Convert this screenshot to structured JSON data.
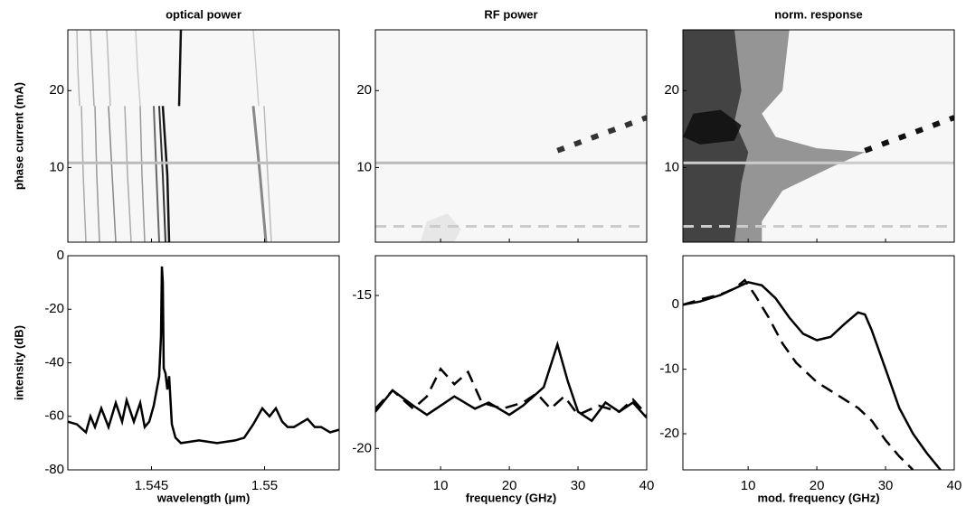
{
  "chart_data": [
    {
      "type": "heatmap",
      "title": "optical power",
      "ylabel": "phase current (mA)",
      "xlim": [
        1.5413,
        1.5533
      ],
      "ylim": [
        0.3,
        27.9
      ],
      "yticks": [
        10,
        20
      ],
      "background": "#f7f7f7",
      "traces": [
        {
          "x": [
            1.5419,
            1.54198,
            1.5421
          ],
          "y": [
            18,
            9,
            0.3
          ],
          "color": "#aaaaaa",
          "width": 1.5
        },
        {
          "x": [
            1.5425,
            1.54258,
            1.5427
          ],
          "y": [
            18,
            9,
            0.3
          ],
          "color": "#999999",
          "width": 1.5
        },
        {
          "x": [
            1.5431,
            1.54326,
            1.54342
          ],
          "y": [
            18,
            9,
            0.3
          ],
          "color": "#888888",
          "width": 1.5
        },
        {
          "x": [
            1.54382,
            1.54394,
            1.5441
          ],
          "y": [
            18,
            9,
            0.3
          ],
          "color": "#aaaaaa",
          "width": 1.5
        },
        {
          "x": [
            1.5445,
            1.54458,
            1.5447
          ],
          "y": [
            18,
            9,
            0.3
          ],
          "color": "#999999",
          "width": 1.5
        },
        {
          "x": [
            1.5451,
            1.54522,
            1.54534
          ],
          "y": [
            18,
            9,
            0.3
          ],
          "color": "#666666",
          "width": 2
        },
        {
          "x": [
            1.54534,
            1.5455,
            1.54562
          ],
          "y": [
            18,
            9,
            0.3
          ],
          "color": "#333333",
          "width": 2
        },
        {
          "x": [
            1.5455,
            1.5457,
            1.54578
          ],
          "y": [
            18,
            9,
            0.3
          ],
          "color": "#111111",
          "width": 2.5
        },
        {
          "x": [
            1.5495,
            1.5498,
            1.55006
          ],
          "y": [
            18,
            9,
            0.3
          ],
          "color": "#888888",
          "width": 3
        },
        {
          "x": [
            1.54998,
            1.55014,
            1.5503
          ],
          "y": [
            18,
            9,
            0.3
          ],
          "color": "#bbbbbb",
          "width": 1.5
        },
        {
          "x": [
            1.5463,
            1.54626,
            1.54622
          ],
          "y": [
            27.9,
            23,
            18
          ],
          "color": "#111111",
          "width": 2.5
        },
        {
          "x": [
            1.5417,
            1.54174,
            1.54182
          ],
          "y": [
            27.9,
            23,
            18
          ],
          "color": "#bbbbbb",
          "width": 1.5
        },
        {
          "x": [
            1.5423,
            1.54238,
            1.54246
          ],
          "y": [
            27.9,
            23,
            18
          ],
          "color": "#aaaaaa",
          "width": 1.5
        },
        {
          "x": [
            1.54302,
            1.5431,
            1.54318
          ],
          "y": [
            27.9,
            23,
            18
          ],
          "color": "#bbbbbb",
          "width": 1.5
        },
        {
          "x": [
            1.5443,
            1.54438,
            1.5445
          ],
          "y": [
            27.9,
            23,
            18
          ],
          "color": "#cccccc",
          "width": 1.5
        },
        {
          "x": [
            1.5495,
            1.54962,
            1.54974
          ],
          "y": [
            27.9,
            23,
            18
          ],
          "color": "#cccccc",
          "width": 1.5
        }
      ],
      "shades": [],
      "hlines": [
        {
          "y": 10.6,
          "style": "solid",
          "color": "#bbbbbb"
        }
      ]
    },
    {
      "type": "heatmap",
      "title": "RF power",
      "xlim": [
        0.5,
        40
      ],
      "ylim": [
        0.3,
        27.9
      ],
      "yticks": [
        10,
        20
      ],
      "background": "#f7f7f7",
      "traces": [
        {
          "x": [
            27,
            40
          ],
          "y": [
            12.2,
            16.5
          ],
          "color": "#333333",
          "width": 6,
          "dashed": true
        }
      ],
      "shades": [
        {
          "x": [
            7,
            8,
            11,
            13,
            12
          ],
          "y": [
            0.3,
            3,
            4,
            2,
            0.3
          ],
          "color": "#e4e4e4"
        }
      ],
      "hlines": [
        {
          "y": 10.6,
          "style": "solid",
          "color": "#bbbbbb"
        },
        {
          "y": 2.35,
          "style": "dashed",
          "color": "#cccccc"
        }
      ]
    },
    {
      "type": "heatmap",
      "title": "norm. response",
      "xlim": [
        0.5,
        40
      ],
      "ylim": [
        0.3,
        27.9
      ],
      "yticks": [
        10,
        20
      ],
      "background": "#f7f7f7",
      "traces": [
        {
          "x": [
            27,
            40
          ],
          "y": [
            12.2,
            16.5
          ],
          "color": "#111111",
          "width": 6,
          "dashed": true
        }
      ],
      "shades": [
        {
          "x": [
            0.5,
            0.5,
            16,
            15,
            12,
            14,
            20,
            27,
            22,
            15,
            12,
            12
          ],
          "y": [
            0.3,
            27.9,
            27.9,
            20,
            17,
            14,
            12.5,
            12,
            10,
            7,
            3,
            0.3
          ],
          "color": "#8a8a8a"
        },
        {
          "x": [
            0.5,
            0.5,
            8,
            9,
            8,
            10,
            9,
            8
          ],
          "y": [
            0.3,
            27.9,
            27.9,
            20,
            16,
            12,
            8,
            0.3
          ],
          "color": "#3a3a3a"
        },
        {
          "x": [
            0.5,
            2,
            6,
            9,
            8,
            3
          ],
          "y": [
            14,
            17,
            17.5,
            15.5,
            13.5,
            13
          ],
          "color": "#111111"
        }
      ],
      "hlines": [
        {
          "y": 10.6,
          "style": "solid",
          "color": "#cccccc"
        },
        {
          "y": 2.35,
          "style": "dashed",
          "color": "#cccccc"
        }
      ]
    },
    {
      "type": "line",
      "xlabel": "wavelength (μm)",
      "ylabel": "intensity (dB)",
      "xlim": [
        1.5413,
        1.5533
      ],
      "ylim": [
        -80,
        0
      ],
      "xticks": [
        1.545,
        1.55
      ],
      "yticks": [
        0,
        -20,
        -40,
        -60,
        -80
      ],
      "series": [
        {
          "style": "solid",
          "color": "#000000",
          "x": [
            1.5413,
            1.5417,
            1.5421,
            1.5423,
            1.5425,
            1.54278,
            1.5431,
            1.54342,
            1.5437,
            1.5439,
            1.54422,
            1.5445,
            1.5447,
            1.5449,
            1.5451,
            1.54534,
            1.54542,
            1.54546,
            1.5455,
            1.54554,
            1.54562,
            1.5457,
            1.54578,
            1.5459,
            1.54606,
            1.5463,
            1.5471,
            1.5479,
            1.5487,
            1.5491,
            1.5495,
            1.5499,
            1.55022,
            1.5505,
            1.55078,
            1.55102,
            1.5513,
            1.5519,
            1.55222,
            1.5525,
            1.5529,
            1.5533
          ],
          "values": [
            -62,
            -63,
            -66,
            -60,
            -64,
            -57,
            -64,
            -55,
            -62,
            -54,
            -62,
            -55,
            -64,
            -62,
            -56,
            -45,
            -30,
            -4,
            -10,
            -42,
            -44,
            -50,
            -45,
            -63,
            -68,
            -70,
            -69,
            -70,
            -69,
            -68,
            -63,
            -57,
            -60,
            -57,
            -62,
            -64,
            -64,
            -61,
            -64,
            -64,
            -66,
            -65
          ]
        }
      ]
    },
    {
      "type": "line",
      "xlabel": "frequency (GHz)",
      "xlim": [
        0.5,
        40
      ],
      "ylim": [
        -20.7,
        -13.7
      ],
      "xticks": [
        10,
        20,
        30,
        40
      ],
      "yticks": [
        -15,
        -20
      ],
      "series": [
        {
          "style": "solid",
          "color": "#000000",
          "x": [
            0.5,
            3,
            6,
            8,
            10,
            12,
            15,
            17,
            20,
            22,
            25,
            27,
            28.5,
            30,
            32,
            34,
            36,
            38,
            40
          ],
          "values": [
            -18.8,
            -18.1,
            -18.6,
            -18.9,
            -18.6,
            -18.3,
            -18.7,
            -18.5,
            -18.9,
            -18.6,
            -18.0,
            -16.6,
            -17.8,
            -18.8,
            -19.1,
            -18.5,
            -18.8,
            -18.5,
            -19.0
          ]
        },
        {
          "style": "dashed",
          "color": "#000000",
          "x": [
            0.5,
            3,
            6,
            8,
            10,
            12,
            14,
            16,
            19,
            22,
            24,
            26,
            28,
            30,
            33,
            36,
            38,
            40
          ],
          "values": [
            -18.7,
            -18.1,
            -18.7,
            -18.3,
            -17.4,
            -17.9,
            -17.5,
            -18.5,
            -18.7,
            -18.5,
            -18.2,
            -18.7,
            -18.3,
            -18.9,
            -18.6,
            -18.8,
            -18.4,
            -18.9
          ]
        }
      ]
    },
    {
      "type": "line",
      "xlabel": "mod. frequency (GHz)",
      "xlim": [
        0.5,
        40
      ],
      "ylim": [
        -25.6,
        7.6
      ],
      "xticks": [
        10,
        20,
        30,
        40
      ],
      "yticks": [
        0,
        -10,
        -20
      ],
      "series": [
        {
          "style": "solid",
          "color": "#000000",
          "x": [
            0.5,
            3,
            6,
            8,
            10,
            12,
            14,
            16,
            18,
            20,
            22,
            24,
            26,
            27,
            28,
            30,
            32,
            34,
            36,
            38
          ],
          "values": [
            0,
            0.5,
            1.5,
            2.5,
            3.5,
            3,
            1,
            -2,
            -4.5,
            -5.5,
            -5,
            -3,
            -1.2,
            -1.5,
            -4,
            -10,
            -16,
            -20,
            -23,
            -25.6
          ]
        },
        {
          "style": "dashed",
          "color": "#000000",
          "x": [
            0.5,
            3,
            6,
            8,
            9.5,
            11,
            13,
            15,
            17,
            20,
            23,
            26,
            28,
            30,
            32,
            34
          ],
          "values": [
            0,
            0.8,
            1.6,
            2.5,
            3.8,
            1.5,
            -2,
            -6,
            -9,
            -12,
            -14,
            -16,
            -18,
            -21,
            -23.5,
            -25.6
          ]
        }
      ]
    }
  ]
}
